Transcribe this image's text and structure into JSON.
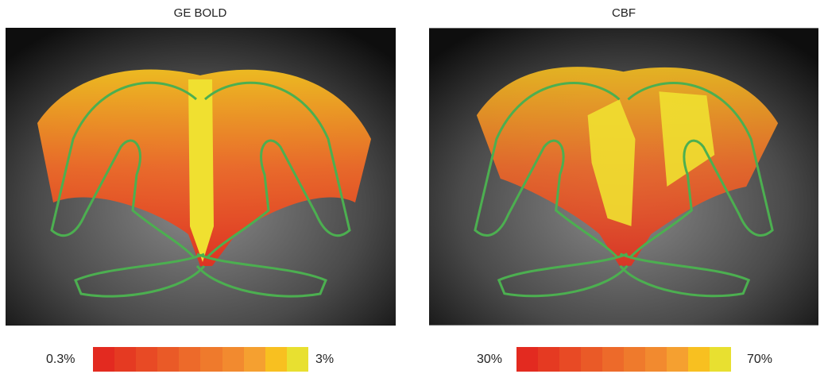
{
  "panels": [
    {
      "title": "GE BOLD",
      "colorbar": {
        "min_label": "0.3%",
        "max_label": "3%"
      }
    },
    {
      "title": "CBF",
      "colorbar": {
        "min_label": "30%",
        "max_label": "70%"
      }
    }
  ],
  "colorbar_colors": [
    "#e32a20",
    "#e53a22",
    "#e84a25",
    "#ea5a27",
    "#ed6a2a",
    "#ef7a2c",
    "#f28a2f",
    "#f5a030",
    "#f8c020",
    "#e8e030"
  ]
}
